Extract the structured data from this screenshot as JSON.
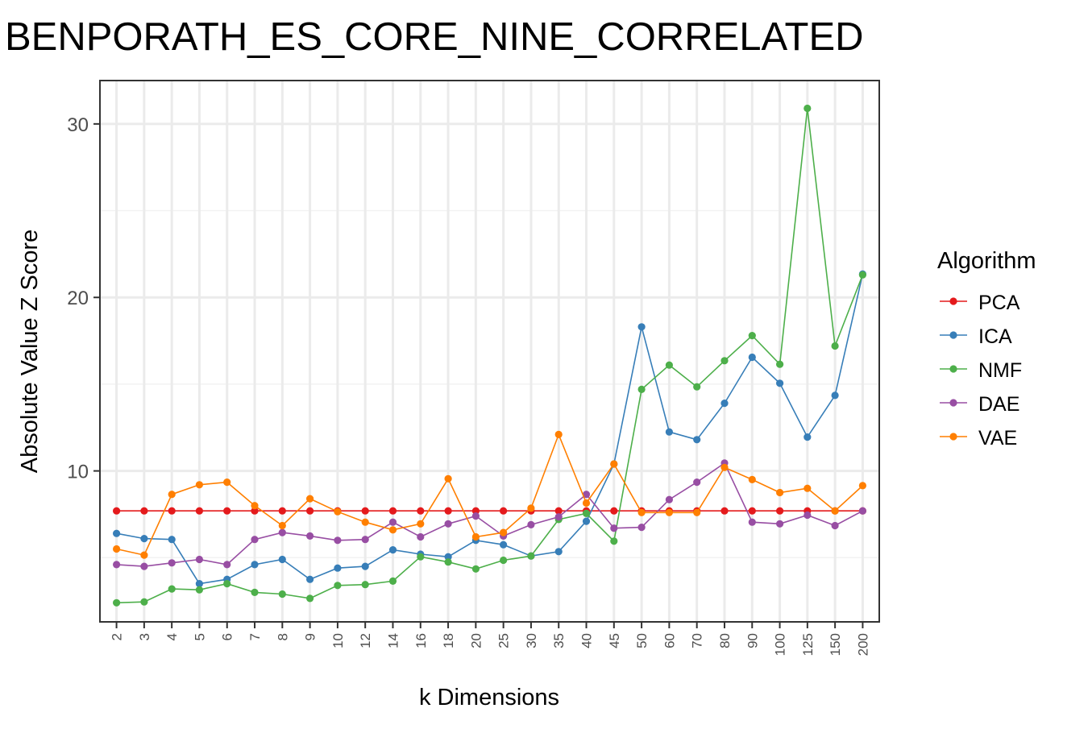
{
  "chart_data": {
    "type": "line",
    "title": "BENPORATH_ES_CORE_NINE_CORRELATED",
    "xlabel": "k Dimensions",
    "ylabel": "Absolute Value Z Score",
    "categories": [
      "2",
      "3",
      "4",
      "5",
      "6",
      "7",
      "8",
      "9",
      "10",
      "12",
      "14",
      "16",
      "18",
      "20",
      "25",
      "30",
      "35",
      "40",
      "45",
      "50",
      "60",
      "70",
      "80",
      "90",
      "100",
      "125",
      "150",
      "200"
    ],
    "ylim": [
      1.3,
      32.5
    ],
    "yticks": [
      10,
      20,
      30
    ],
    "grid": true,
    "legend": {
      "title": "Algorithm",
      "position": "right"
    },
    "series": [
      {
        "name": "PCA",
        "color": "#E41A1C",
        "values": [
          7.7,
          7.7,
          7.7,
          7.7,
          7.7,
          7.7,
          7.7,
          7.7,
          7.7,
          7.7,
          7.7,
          7.7,
          7.7,
          7.7,
          7.7,
          7.7,
          7.7,
          7.7,
          7.7,
          7.7,
          7.7,
          7.7,
          7.7,
          7.7,
          7.7,
          7.7,
          7.7,
          7.7
        ]
      },
      {
        "name": "ICA",
        "color": "#377EB8",
        "values": [
          6.4,
          6.1,
          6.05,
          3.5,
          3.75,
          4.6,
          4.9,
          3.75,
          4.4,
          4.5,
          5.45,
          5.2,
          5.05,
          6.0,
          5.75,
          5.1,
          5.35,
          7.1,
          10.4,
          18.3,
          12.25,
          11.8,
          13.9,
          16.55,
          15.05,
          11.95,
          14.35,
          21.35
        ]
      },
      {
        "name": "NMF",
        "color": "#4DAF4A",
        "values": [
          2.4,
          2.45,
          3.2,
          3.15,
          3.5,
          3.0,
          2.9,
          2.65,
          3.4,
          3.45,
          3.65,
          5.05,
          4.75,
          4.35,
          4.85,
          5.1,
          7.2,
          7.55,
          5.95,
          14.7,
          16.1,
          14.85,
          16.35,
          17.8,
          16.15,
          30.9,
          17.2,
          21.3
        ]
      },
      {
        "name": "DAE",
        "color": "#984EA3",
        "values": [
          4.6,
          4.5,
          4.7,
          4.9,
          4.6,
          6.05,
          6.45,
          6.25,
          6.0,
          6.05,
          7.05,
          6.2,
          6.95,
          7.4,
          6.25,
          6.9,
          7.35,
          8.65,
          6.7,
          6.75,
          8.35,
          9.35,
          10.45,
          7.05,
          6.95,
          7.45,
          6.85,
          7.7
        ]
      },
      {
        "name": "VAE",
        "color": "#FF7F00",
        "values": [
          5.5,
          5.15,
          8.65,
          9.2,
          9.35,
          8.0,
          6.85,
          8.4,
          7.65,
          7.05,
          6.6,
          6.95,
          9.55,
          6.2,
          6.45,
          7.85,
          12.1,
          8.15,
          10.4,
          7.6,
          7.6,
          7.6,
          10.2,
          9.5,
          8.75,
          9.0,
          7.7,
          9.15
        ]
      }
    ]
  }
}
